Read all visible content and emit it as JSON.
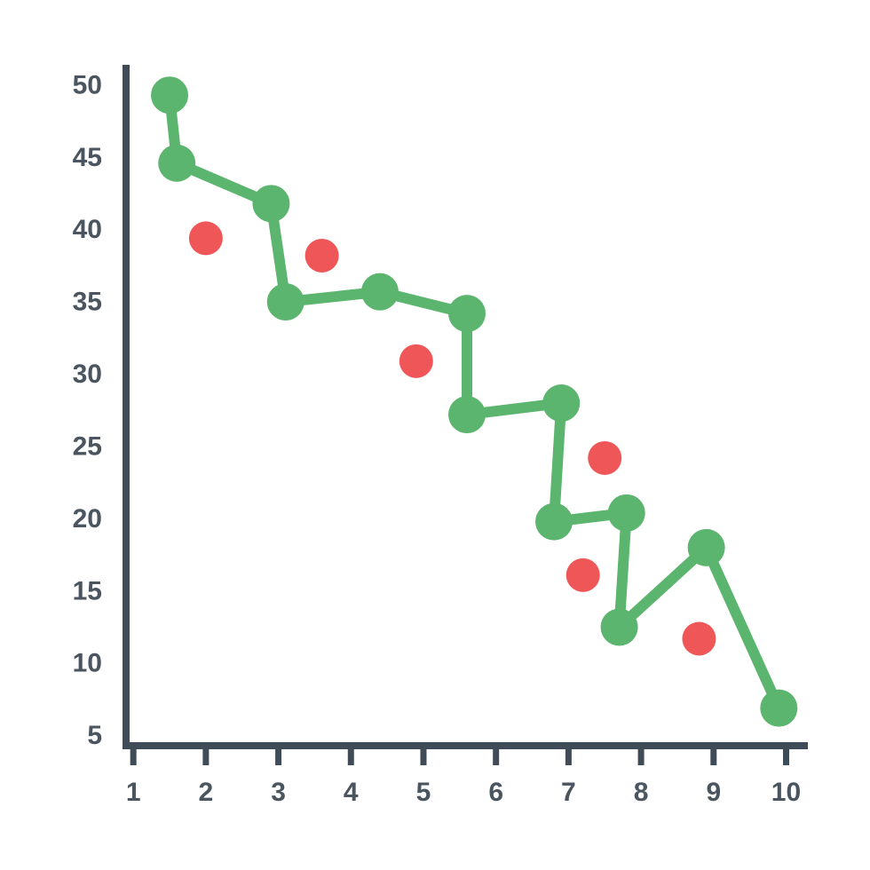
{
  "chart_data": {
    "type": "line",
    "xlim": [
      0.9,
      10.3
    ],
    "ylim": [
      4.4,
      51.5
    ],
    "xticks": [
      1,
      2,
      3,
      4,
      5,
      6,
      7,
      8,
      9,
      10
    ],
    "yticks": [
      5,
      10,
      15,
      20,
      25,
      30,
      35,
      40,
      45,
      50
    ],
    "axis_color": "#3f4b56",
    "series": [
      {
        "mode": "line",
        "color": "#5cb56e",
        "x": [
          1.5,
          1.6,
          2.9,
          3.1,
          4.4,
          5.6,
          5.6,
          6.9,
          6.8,
          7.8,
          7.7,
          8.9,
          9.9
        ],
        "values": [
          49.4,
          44.7,
          41.9,
          35.1,
          35.8,
          34.3,
          27.3,
          28.1,
          19.9,
          20.5,
          12.6,
          18.1,
          7.0
        ]
      },
      {
        "mode": "points",
        "color": "#ef5657",
        "x": [
          2.0,
          3.6,
          4.9,
          7.5,
          7.2,
          8.8
        ],
        "values": [
          39.5,
          38.3,
          31.0,
          24.3,
          16.2,
          11.8
        ]
      }
    ]
  }
}
